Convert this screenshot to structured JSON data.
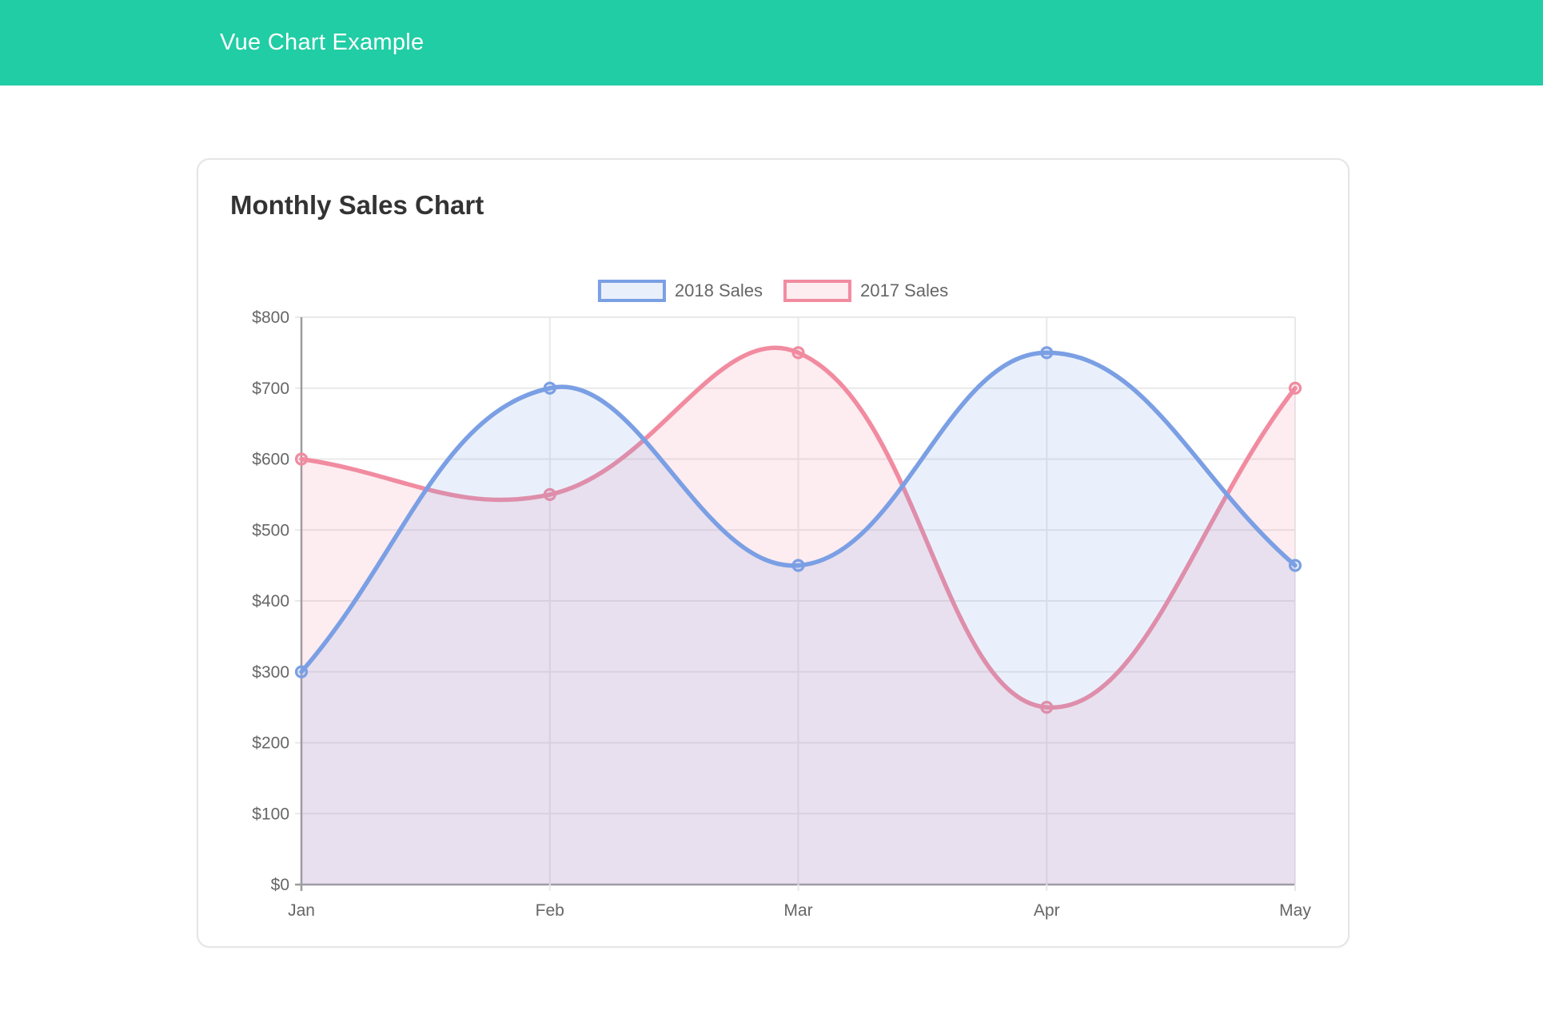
{
  "header": {
    "title": "Vue Chart Example",
    "background_color": "#21cda4",
    "text_color": "#ffffff"
  },
  "card": {
    "title": "Monthly Sales Chart"
  },
  "chart_data": {
    "type": "line",
    "title": "Monthly Sales Chart",
    "categories": [
      "Jan",
      "Feb",
      "Mar",
      "Apr",
      "May"
    ],
    "series": [
      {
        "name": "2018 Sales",
        "values": [
          300,
          700,
          450,
          750,
          450
        ],
        "line_color": "#7b9fe4",
        "fill_color": "rgba(123,159,228,0.16)"
      },
      {
        "name": "2017 Sales",
        "values": [
          600,
          550,
          750,
          250,
          700
        ],
        "line_color": "#f18ba0",
        "fill_color": "rgba(241,139,160,0.16)"
      }
    ],
    "xlabel": "",
    "ylabel": "",
    "ylim": [
      0,
      800
    ],
    "y_step": 100,
    "y_ticks": [
      "$0",
      "$100",
      "$200",
      "$300",
      "$400",
      "$500",
      "$600",
      "$700",
      "$800"
    ],
    "grid": true,
    "legend_position": "top",
    "line_tension": 0.4,
    "smooth": true,
    "fill_to_zero": true,
    "grid_color": "#e9e9e9",
    "axis_zero_line_color": "#9c9c9c",
    "tick_label_color": "#666666"
  }
}
